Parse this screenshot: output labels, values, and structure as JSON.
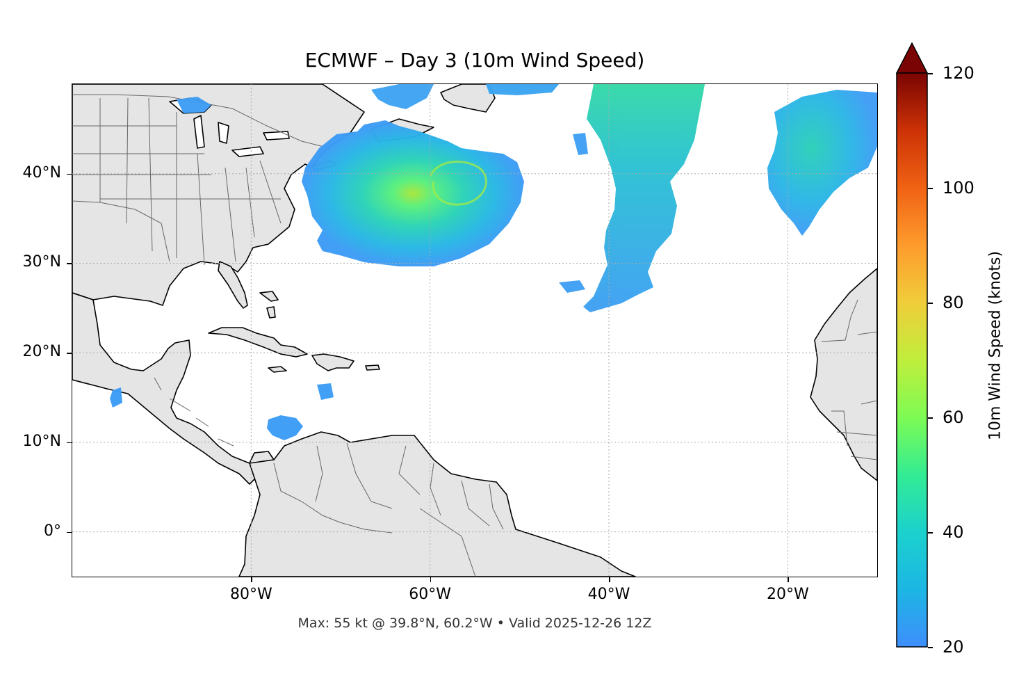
{
  "title": "ECMWF – Day 3 (10m Wind Speed)",
  "footer": "Max: 55 kt @ 39.8°N, 60.2°W • Valid 2025-12-26 12Z",
  "map": {
    "extent": {
      "lon_min": -100,
      "lon_max": -10,
      "lat_min": -5,
      "lat_max": 50
    },
    "lat_ticks": [
      {
        "value": 40,
        "label": "40°N"
      },
      {
        "value": 30,
        "label": "30°N"
      },
      {
        "value": 20,
        "label": "20°N"
      },
      {
        "value": 10,
        "label": "10°N"
      },
      {
        "value": 0,
        "label": "0°"
      }
    ],
    "lon_ticks": [
      {
        "value": -80,
        "label": "80°W"
      },
      {
        "value": -60,
        "label": "60°W"
      },
      {
        "value": -40,
        "label": "40°W"
      },
      {
        "value": -20,
        "label": "20°W"
      }
    ],
    "land_color": "#e5e5e5",
    "coast_color": "#000000",
    "border_color": "#666666",
    "grid": true
  },
  "colorbar": {
    "label": "10m Wind Speed (knots)",
    "min": 20,
    "max": 120,
    "ticks": [
      {
        "value": 20,
        "label": "20"
      },
      {
        "value": 40,
        "label": "40"
      },
      {
        "value": 60,
        "label": "60"
      },
      {
        "value": 80,
        "label": "80"
      },
      {
        "value": 100,
        "label": "100"
      },
      {
        "value": 120,
        "label": "120"
      }
    ],
    "colormap": "turbo",
    "extend": "max"
  },
  "chart_data": {
    "type": "heatmap",
    "title": "ECMWF – Day 3 (10m Wind Speed)",
    "value_units": "knots",
    "value_range": [
      20,
      120
    ],
    "max_value": 55,
    "max_location": {
      "lat": 39.8,
      "lon": -60.2
    },
    "features": [
      {
        "name": "Cyclone wind field",
        "center": {
          "lat": 39.8,
          "lon": -60.2
        },
        "peak": 55
      },
      {
        "name": "Central Atlantic band",
        "center": {
          "lat": 37,
          "lon": -37
        },
        "peak": 40
      },
      {
        "name": "Eastern Atlantic field",
        "center": {
          "lat": 42,
          "lon": -17
        },
        "peak": 35
      },
      {
        "name": "Caribbean patch",
        "center": {
          "lat": 11.5,
          "lon": -77
        },
        "peak": 25
      }
    ]
  }
}
